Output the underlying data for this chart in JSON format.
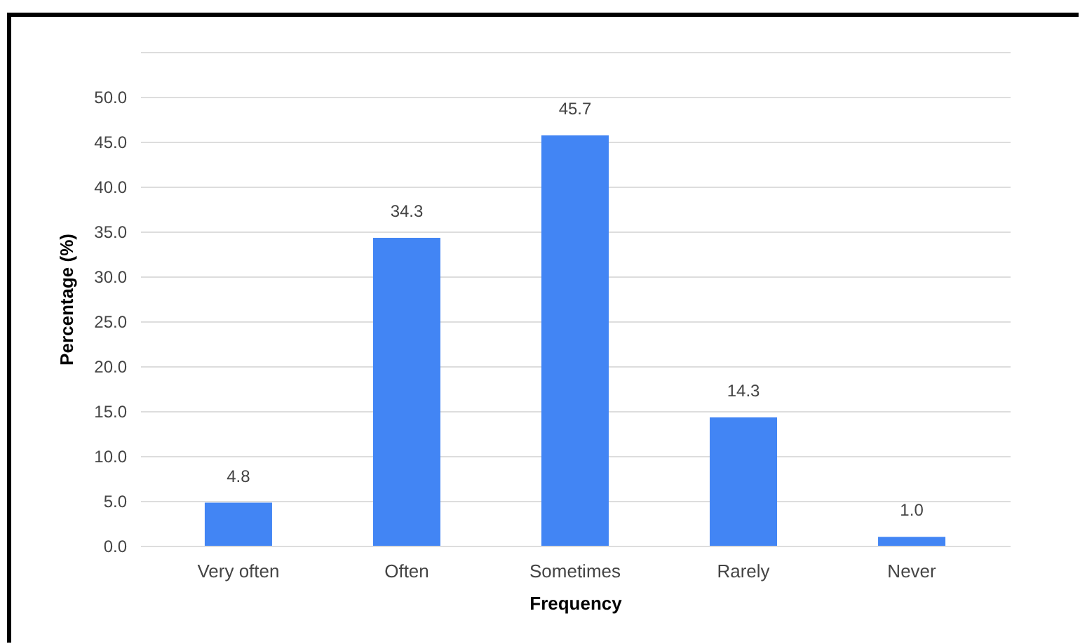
{
  "chart_data": {
    "type": "bar",
    "xlabel": "Frequency",
    "ylabel": "Percentage (%)",
    "categories": [
      "Very often",
      "Often",
      "Sometimes",
      "Rarely",
      "Never"
    ],
    "values": [
      4.8,
      34.3,
      45.7,
      14.3,
      1.0
    ],
    "value_labels": [
      "4.8",
      "34.3",
      "45.7",
      "14.3",
      "1.0"
    ],
    "color": "#4285f4",
    "ylim": [
      0,
      55
    ],
    "yticks": [
      {
        "value": 0,
        "label": "0.0"
      },
      {
        "value": 5,
        "label": "5.0"
      },
      {
        "value": 10,
        "label": "10.0"
      },
      {
        "value": 15,
        "label": "15.0"
      },
      {
        "value": 20,
        "label": "20.0"
      },
      {
        "value": 25,
        "label": "25.0"
      },
      {
        "value": 30,
        "label": "30.0"
      },
      {
        "value": 35,
        "label": "35.0"
      },
      {
        "value": 40,
        "label": "40.0"
      },
      {
        "value": 45,
        "label": "45.0"
      },
      {
        "value": 50,
        "label": "50.0"
      },
      {
        "value": 55,
        "label": null
      }
    ],
    "grid": "y"
  }
}
